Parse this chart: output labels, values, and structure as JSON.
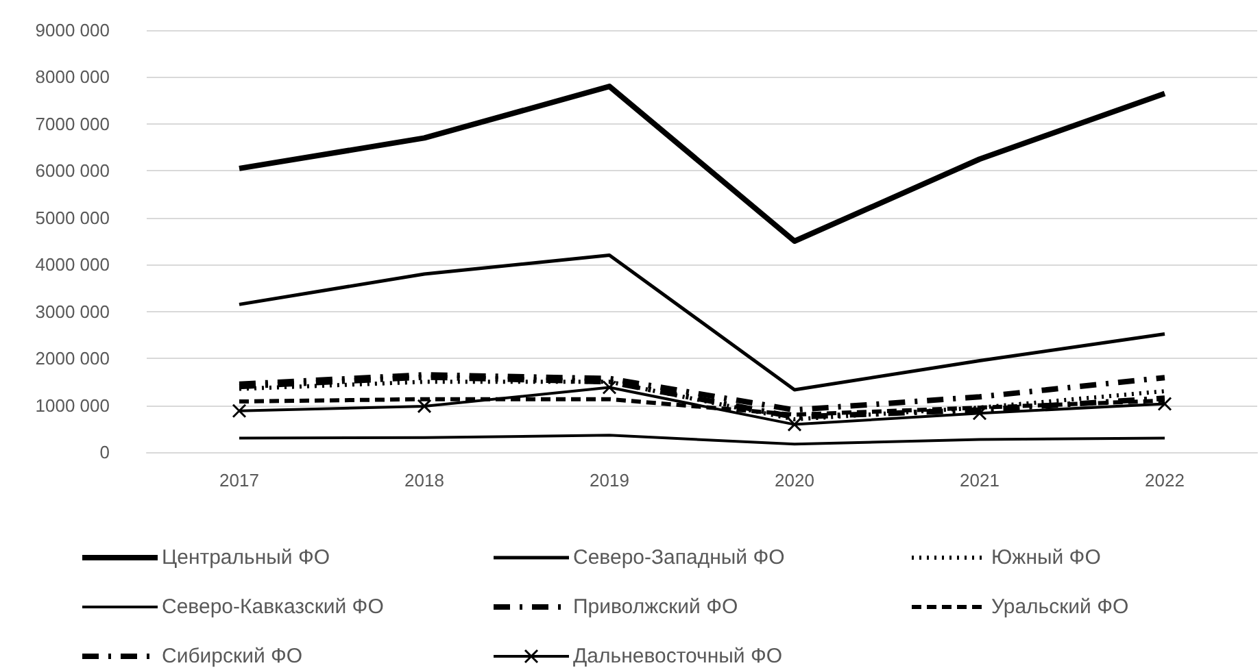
{
  "chart_data": {
    "type": "line",
    "categories": [
      "2017",
      "2018",
      "2019",
      "2020",
      "2021",
      "2022"
    ],
    "ylim": [
      0,
      9000000
    ],
    "yticks": [
      0,
      {
        "value": 1000000,
        "label": "1000 000"
      },
      {
        "value": 2000000,
        "label": "2000 000"
      },
      {
        "value": 3000000,
        "label": "3000 000"
      },
      {
        "value": 4000000,
        "label": "4000 000"
      },
      {
        "value": 5000000,
        "label": "5000 000"
      },
      {
        "value": 6000000,
        "label": "6000 000"
      },
      {
        "value": 7000000,
        "label": "7000 000"
      },
      {
        "value": 8000000,
        "label": "8000 000"
      },
      {
        "value": 9000000,
        "label": "9000 000"
      }
    ],
    "grid": "y",
    "legend": "bottom",
    "marker": "none",
    "series": [
      {
        "name": "Центральный ФО",
        "color": "#000000",
        "line_style": "solid",
        "values": [
          6050000,
          6700000,
          7800000,
          4500000,
          6250000,
          7650000
        ]
      },
      {
        "name": "Северо-Западный ФО",
        "color": "#000000",
        "line_style": "solid",
        "values": [
          3150000,
          3800000,
          4200000,
          1330000,
          1950000,
          2520000
        ]
      },
      {
        "name": "Южный ФО",
        "color": "#000000",
        "line_style": "dotted",
        "values": [
          1350000,
          1500000,
          1500000,
          700000,
          950000,
          1300000
        ]
      },
      {
        "name": "Северо-Кавказский ФО",
        "color": "#000000",
        "line_style": "solid",
        "values": [
          300000,
          310000,
          360000,
          170000,
          270000,
          300000
        ]
      },
      {
        "name": "Приволжский ФО",
        "color": "#000000",
        "line_style": "dashdot",
        "values": [
          1450000,
          1650000,
          1570000,
          900000,
          1180000,
          1590000
        ]
      },
      {
        "name": "Уральский ФО",
        "color": "#000000",
        "line_style": "dashed",
        "values": [
          1080000,
          1130000,
          1130000,
          800000,
          950000,
          1100000
        ]
      },
      {
        "name": "Сибирский ФО",
        "color": "#000000",
        "line_style": "dashdot",
        "values": [
          1400000,
          1600000,
          1500000,
          750000,
          900000,
          1150000
        ]
      },
      {
        "name": "Дальневосточный ФО",
        "color": "#000000",
        "line_style": "solid",
        "marker": "cross",
        "values": [
          880000,
          980000,
          1380000,
          590000,
          830000,
          1030000
        ]
      }
    ]
  }
}
